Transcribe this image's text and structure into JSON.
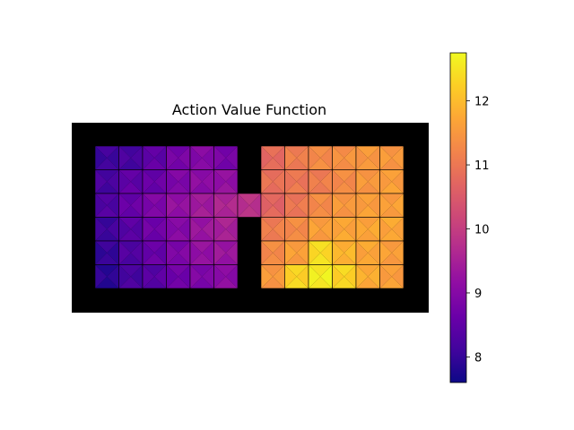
{
  "chart_data": {
    "type": "heatmap",
    "title": "Action Value Function",
    "colormap": "plasma",
    "colorbar": {
      "range": [
        7.6,
        12.75
      ],
      "ticks": [
        8,
        9,
        10,
        11,
        12
      ],
      "tick_labels": [
        "8",
        "9",
        "10",
        "11",
        "12"
      ]
    },
    "grid": {
      "rooms": [
        {
          "name": "left room",
          "rows": 6,
          "cols": 6,
          "values": [
            [
              8.1,
              8.2,
              8.5,
              8.8,
              9.0,
              8.8
            ],
            [
              8.2,
              8.5,
              8.6,
              8.9,
              9.1,
              9.2
            ],
            [
              8.3,
              8.6,
              8.9,
              9.2,
              9.4,
              9.6
            ],
            [
              8.1,
              8.4,
              8.7,
              9.0,
              9.3,
              9.5
            ],
            [
              8.0,
              8.3,
              8.6,
              8.9,
              9.2,
              9.3
            ],
            [
              7.9,
              8.2,
              8.4,
              8.7,
              8.9,
              9.1
            ]
          ]
        },
        {
          "name": "doorway",
          "rows": 1,
          "cols": 1,
          "values": [
            [
              9.8
            ]
          ]
        },
        {
          "name": "right room",
          "rows": 6,
          "cols": 6,
          "values": [
            [
              10.8,
              11.1,
              11.3,
              11.4,
              11.5,
              11.5
            ],
            [
              10.9,
              11.0,
              11.1,
              11.3,
              11.5,
              11.6
            ],
            [
              10.7,
              11.0,
              11.3,
              11.5,
              11.6,
              11.6
            ],
            [
              11.1,
              11.3,
              11.6,
              11.7,
              11.7,
              11.7
            ],
            [
              11.3,
              11.6,
              12.4,
              11.9,
              11.7,
              11.6
            ],
            [
              11.5,
              12.3,
              12.6,
              12.3,
              11.8,
              11.6
            ]
          ]
        }
      ]
    }
  }
}
